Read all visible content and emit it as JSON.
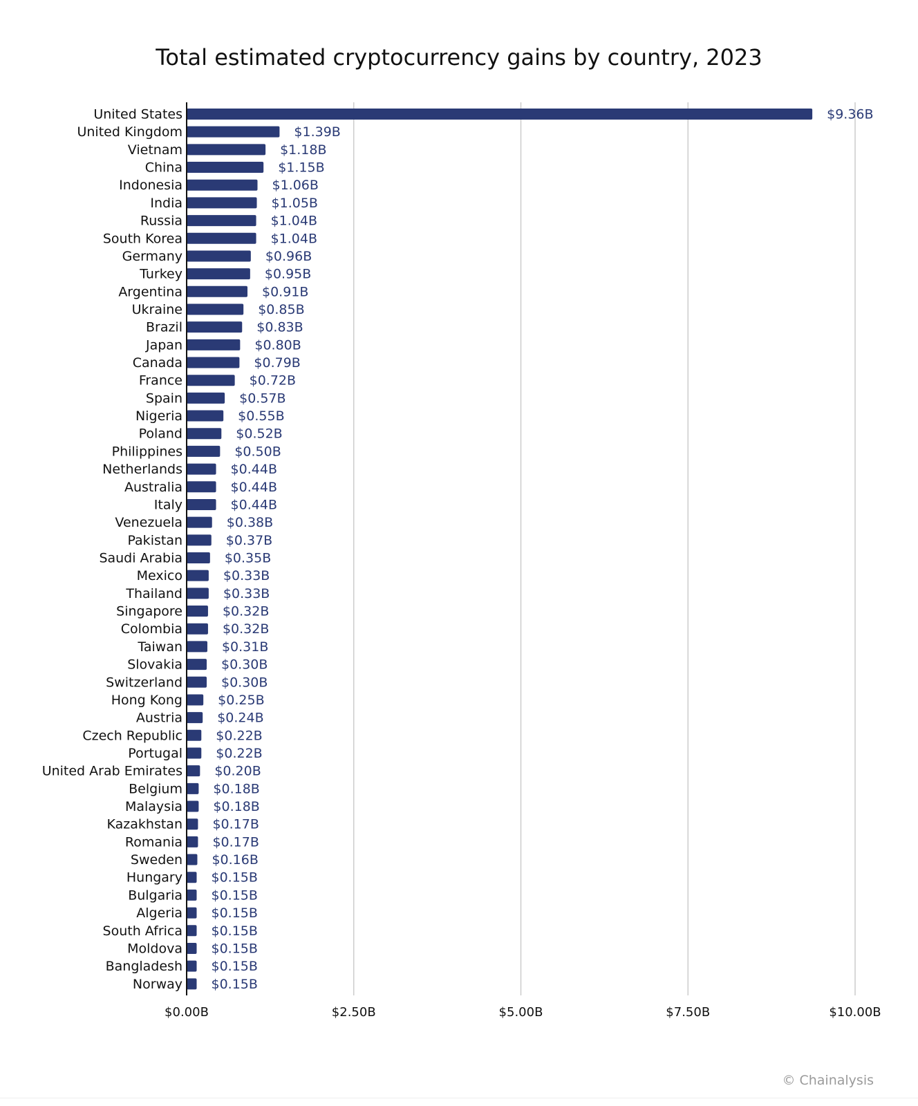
{
  "chart_data": {
    "type": "bar",
    "orientation": "horizontal",
    "title": "Total estimated cryptocurrency gains by country, 2023",
    "xlabel": "",
    "ylabel": "",
    "xlim": [
      0,
      10
    ],
    "x_ticks": [
      0,
      2.5,
      5,
      7.5,
      10
    ],
    "x_tick_labels": [
      "$0.00B",
      "$2.50B",
      "$5.00B",
      "$7.50B",
      "$10.00B"
    ],
    "grid": "vertical",
    "legend": "none",
    "bar_color": "#2a3a75",
    "categories": [
      "United States",
      "United Kingdom",
      "Vietnam",
      "China",
      "Indonesia",
      "India",
      "Russia",
      "South Korea",
      "Germany",
      "Turkey",
      "Argentina",
      "Ukraine",
      "Brazil",
      "Japan",
      "Canada",
      "France",
      "Spain",
      "Nigeria",
      "Poland",
      "Philippines",
      "Netherlands",
      "Australia",
      "Italy",
      "Venezuela",
      "Pakistan",
      "Saudi Arabia",
      "Mexico",
      "Thailand",
      "Singapore",
      "Colombia",
      "Taiwan",
      "Slovakia",
      "Switzerland",
      "Hong Kong",
      "Austria",
      "Czech Republic",
      "Portugal",
      "United Arab Emirates",
      "Belgium",
      "Malaysia",
      "Kazakhstan",
      "Romania",
      "Sweden",
      "Hungary",
      "Bulgaria",
      "Algeria",
      "South Africa",
      "Moldova",
      "Bangladesh",
      "Norway"
    ],
    "values": [
      9.36,
      1.39,
      1.18,
      1.15,
      1.06,
      1.05,
      1.04,
      1.04,
      0.96,
      0.95,
      0.91,
      0.85,
      0.83,
      0.8,
      0.79,
      0.72,
      0.57,
      0.55,
      0.52,
      0.5,
      0.44,
      0.44,
      0.44,
      0.38,
      0.37,
      0.35,
      0.33,
      0.33,
      0.32,
      0.32,
      0.31,
      0.3,
      0.3,
      0.25,
      0.24,
      0.22,
      0.22,
      0.2,
      0.18,
      0.18,
      0.17,
      0.17,
      0.16,
      0.15,
      0.15,
      0.15,
      0.15,
      0.15,
      0.15,
      0.15
    ],
    "data_labels": [
      "$9.36B",
      "$1.39B",
      "$1.18B",
      "$1.15B",
      "$1.06B",
      "$1.05B",
      "$1.04B",
      "$1.04B",
      "$0.96B",
      "$0.95B",
      "$0.91B",
      "$0.85B",
      "$0.83B",
      "$0.80B",
      "$0.79B",
      "$0.72B",
      "$0.57B",
      "$0.55B",
      "$0.52B",
      "$0.50B",
      "$0.44B",
      "$0.44B",
      "$0.44B",
      "$0.38B",
      "$0.37B",
      "$0.35B",
      "$0.33B",
      "$0.33B",
      "$0.32B",
      "$0.32B",
      "$0.31B",
      "$0.30B",
      "$0.30B",
      "$0.25B",
      "$0.24B",
      "$0.22B",
      "$0.22B",
      "$0.20B",
      "$0.18B",
      "$0.18B",
      "$0.17B",
      "$0.17B",
      "$0.16B",
      "$0.15B",
      "$0.15B",
      "$0.15B",
      "$0.15B",
      "$0.15B",
      "$0.15B",
      "$0.15B"
    ]
  },
  "footer": {
    "source": "© Chainalysis"
  },
  "colors": {
    "bar": "#2a3a75",
    "data_label": "#2a3a75",
    "category_label": "#111111",
    "gridline": "#cccccc",
    "axis": "#111111"
  }
}
